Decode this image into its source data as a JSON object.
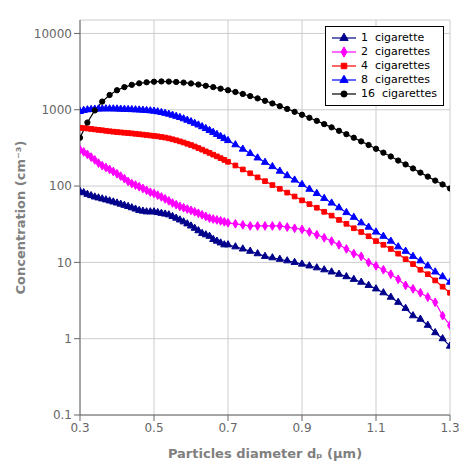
{
  "chart_data": {
    "type": "line",
    "xlabel": "Particles diameter dₚ  (μm)",
    "ylabel": "Concentration  (cm⁻³)",
    "log": "y",
    "grid": true,
    "legend": "upper right",
    "xlim": [
      0.3,
      1.3
    ],
    "ylim": [
      0.1,
      15000
    ],
    "xticks": [
      0.3,
      0.5,
      0.7,
      0.9,
      1.1,
      1.3
    ],
    "yticks": [
      0.1,
      1,
      10,
      100,
      1000,
      10000
    ],
    "series": [
      {
        "name": "1  cigarette",
        "color": "#00008B",
        "marker": "triangle",
        "x": [
          0.3,
          0.31,
          0.32,
          0.33,
          0.34,
          0.35,
          0.36,
          0.37,
          0.38,
          0.39,
          0.4,
          0.41,
          0.42,
          0.43,
          0.44,
          0.45,
          0.46,
          0.47,
          0.48,
          0.49,
          0.5,
          0.51,
          0.52,
          0.53,
          0.54,
          0.55,
          0.56,
          0.57,
          0.58,
          0.59,
          0.6,
          0.61,
          0.62,
          0.63,
          0.64,
          0.65,
          0.66,
          0.67,
          0.68,
          0.69,
          0.7,
          0.72,
          0.74,
          0.76,
          0.78,
          0.8,
          0.82,
          0.84,
          0.86,
          0.88,
          0.9,
          0.92,
          0.94,
          0.96,
          0.98,
          1.0,
          1.02,
          1.04,
          1.06,
          1.08,
          1.1,
          1.12,
          1.14,
          1.16,
          1.18,
          1.2,
          1.22,
          1.24,
          1.26,
          1.28,
          1.3
        ],
        "values": [
          85,
          82,
          78,
          75,
          72,
          70,
          68,
          66,
          64,
          62,
          60,
          58,
          56,
          54,
          52,
          50,
          48,
          47,
          46,
          46,
          46,
          45,
          44,
          43,
          42,
          40,
          38,
          36,
          34,
          32,
          30,
          28,
          26,
          24,
          23,
          22,
          20,
          19,
          18,
          17,
          17,
          16,
          15,
          14,
          13,
          12,
          11.5,
          11,
          10.5,
          10,
          9.5,
          9,
          8.5,
          8,
          7.5,
          7,
          6.5,
          6,
          5.5,
          5,
          4.5,
          4,
          3.5,
          3,
          2.5,
          2,
          1.8,
          1.5,
          1.2,
          1.0,
          0.8
        ]
      },
      {
        "name": "2  cigarettes",
        "color": "#FF00FF",
        "marker": "diamond",
        "x": [
          0.3,
          0.31,
          0.32,
          0.33,
          0.34,
          0.35,
          0.36,
          0.37,
          0.38,
          0.39,
          0.4,
          0.41,
          0.42,
          0.43,
          0.44,
          0.45,
          0.46,
          0.47,
          0.48,
          0.49,
          0.5,
          0.51,
          0.52,
          0.53,
          0.54,
          0.55,
          0.56,
          0.57,
          0.58,
          0.59,
          0.6,
          0.61,
          0.62,
          0.63,
          0.64,
          0.65,
          0.66,
          0.67,
          0.68,
          0.69,
          0.7,
          0.72,
          0.74,
          0.76,
          0.78,
          0.8,
          0.82,
          0.84,
          0.86,
          0.88,
          0.9,
          0.92,
          0.94,
          0.96,
          0.98,
          1.0,
          1.02,
          1.04,
          1.06,
          1.08,
          1.1,
          1.12,
          1.14,
          1.16,
          1.18,
          1.2,
          1.22,
          1.24,
          1.26,
          1.28,
          1.3
        ],
        "values": [
          300,
          280,
          260,
          240,
          220,
          200,
          185,
          175,
          165,
          155,
          145,
          135,
          125,
          115,
          108,
          103,
          98,
          93,
          88,
          83,
          80,
          76,
          72,
          68,
          64,
          60,
          57,
          54,
          52,
          50,
          48,
          46,
          44,
          42,
          40,
          38,
          37,
          36,
          35,
          34,
          33,
          32,
          31,
          30,
          30,
          30,
          30,
          30,
          29,
          28,
          27,
          25,
          23,
          21,
          19,
          17,
          15,
          13,
          12,
          10,
          9,
          8,
          7,
          6,
          5,
          4.5,
          4,
          3.5,
          3,
          2,
          1.5
        ]
      },
      {
        "name": "4  cigarettes",
        "color": "#FF0000",
        "marker": "square",
        "x": [
          0.3,
          0.31,
          0.32,
          0.33,
          0.34,
          0.35,
          0.36,
          0.37,
          0.38,
          0.39,
          0.4,
          0.41,
          0.42,
          0.43,
          0.44,
          0.45,
          0.46,
          0.47,
          0.48,
          0.49,
          0.5,
          0.51,
          0.52,
          0.53,
          0.54,
          0.55,
          0.56,
          0.57,
          0.58,
          0.59,
          0.6,
          0.61,
          0.62,
          0.63,
          0.64,
          0.65,
          0.66,
          0.67,
          0.68,
          0.69,
          0.7,
          0.72,
          0.74,
          0.76,
          0.78,
          0.8,
          0.82,
          0.84,
          0.86,
          0.88,
          0.9,
          0.92,
          0.94,
          0.96,
          0.98,
          1.0,
          1.02,
          1.04,
          1.06,
          1.08,
          1.1,
          1.12,
          1.14,
          1.16,
          1.18,
          1.2,
          1.22,
          1.24,
          1.26,
          1.28,
          1.3
        ],
        "values": [
          580,
          575,
          568,
          560,
          552,
          545,
          538,
          530,
          522,
          516,
          510,
          505,
          500,
          495,
          490,
          484,
          478,
          472,
          466,
          460,
          454,
          448,
          440,
          432,
          422,
          410,
          398,
          385,
          372,
          358,
          345,
          330,
          315,
          300,
          285,
          272,
          258,
          245,
          232,
          220,
          208,
          186,
          165,
          147,
          130,
          116,
          103,
          92,
          82,
          73,
          65,
          58,
          52,
          46,
          41,
          36,
          32,
          28,
          25,
          22,
          19,
          17,
          15,
          13,
          11,
          9.5,
          8,
          7,
          5.8,
          4.8,
          4
        ]
      },
      {
        "name": "8  cigarettes",
        "color": "#0000FF",
        "marker": "triangle",
        "x": [
          0.3,
          0.31,
          0.32,
          0.33,
          0.34,
          0.35,
          0.36,
          0.37,
          0.38,
          0.39,
          0.4,
          0.41,
          0.42,
          0.43,
          0.44,
          0.45,
          0.46,
          0.47,
          0.48,
          0.49,
          0.5,
          0.51,
          0.52,
          0.53,
          0.54,
          0.55,
          0.56,
          0.57,
          0.58,
          0.59,
          0.6,
          0.61,
          0.62,
          0.63,
          0.64,
          0.65,
          0.66,
          0.67,
          0.68,
          0.69,
          0.7,
          0.72,
          0.74,
          0.76,
          0.78,
          0.8,
          0.82,
          0.84,
          0.86,
          0.88,
          0.9,
          0.92,
          0.94,
          0.96,
          0.98,
          1.0,
          1.02,
          1.04,
          1.06,
          1.08,
          1.1,
          1.12,
          1.14,
          1.16,
          1.18,
          1.2,
          1.22,
          1.24,
          1.26,
          1.28,
          1.3
        ],
        "values": [
          950,
          980,
          1000,
          1010,
          1020,
          1025,
          1028,
          1030,
          1030,
          1028,
          1025,
          1020,
          1015,
          1010,
          1005,
          1000,
          995,
          988,
          980,
          970,
          960,
          942,
          922,
          900,
          876,
          850,
          822,
          793,
          762,
          730,
          698,
          665,
          632,
          600,
          568,
          536,
          506,
          476,
          448,
          420,
          395,
          348,
          305,
          267,
          234,
          205,
          180,
          157,
          137,
          120,
          105,
          91,
          80,
          69,
          60,
          52,
          45,
          39,
          33,
          29,
          25,
          22,
          19,
          16,
          14,
          12,
          10.5,
          9,
          7.5,
          6.5,
          5.5
        ]
      },
      {
        "name": "16  cigarettes",
        "color": "#000000",
        "marker": "circle",
        "x": [
          0.3,
          0.32,
          0.34,
          0.36,
          0.38,
          0.4,
          0.42,
          0.44,
          0.46,
          0.48,
          0.5,
          0.52,
          0.54,
          0.56,
          0.58,
          0.6,
          0.62,
          0.64,
          0.66,
          0.68,
          0.7,
          0.72,
          0.74,
          0.76,
          0.78,
          0.8,
          0.82,
          0.84,
          0.86,
          0.88,
          0.9,
          0.92,
          0.94,
          0.96,
          0.98,
          1.0,
          1.02,
          1.04,
          1.06,
          1.08,
          1.1,
          1.12,
          1.14,
          1.16,
          1.18,
          1.2,
          1.22,
          1.24,
          1.26,
          1.28,
          1.3
        ],
        "values": [
          430,
          680,
          980,
          1280,
          1560,
          1800,
          1980,
          2120,
          2220,
          2290,
          2330,
          2350,
          2340,
          2310,
          2270,
          2210,
          2140,
          2060,
          1980,
          1890,
          1800,
          1710,
          1610,
          1510,
          1410,
          1310,
          1210,
          1115,
          1025,
          940,
          860,
          785,
          715,
          648,
          588,
          530,
          478,
          430,
          385,
          345,
          308,
          274,
          244,
          216,
          192,
          170,
          150,
          133,
          118,
          105,
          93
        ]
      }
    ]
  }
}
